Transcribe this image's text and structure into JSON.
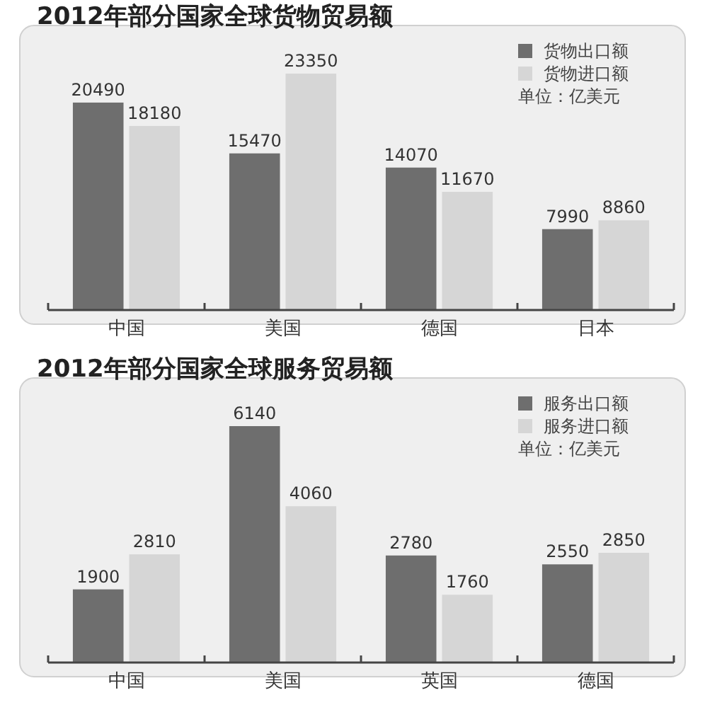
{
  "chart_data": [
    {
      "type": "bar",
      "title": "2012年部分国家全球货物贸易额",
      "categories": [
        "中国",
        "美国",
        "德国",
        "日本"
      ],
      "series": [
        {
          "name": "货物出口额",
          "color": "#6e6e6e",
          "values": [
            20490,
            15470,
            14070,
            7990
          ]
        },
        {
          "name": "货物进口额",
          "color": "#d6d6d6",
          "values": [
            18180,
            23350,
            11670,
            8860
          ]
        }
      ],
      "data_labels": true,
      "legend": "top right",
      "annotations": [
        "单位：亿美元"
      ]
    },
    {
      "type": "bar",
      "title": "2012年部分国家全球服务贸易额",
      "categories": [
        "中国",
        "美国",
        "英国",
        "德国"
      ],
      "series": [
        {
          "name": "服务出口额",
          "color": "#6e6e6e",
          "values": [
            1900,
            6140,
            2780,
            2550
          ]
        },
        {
          "name": "服务进口额",
          "color": "#d6d6d6",
          "values": [
            2810,
            4060,
            1760,
            2850
          ]
        }
      ],
      "data_labels": true,
      "legend": "top right",
      "annotations": [
        "单位：亿美元"
      ]
    }
  ]
}
